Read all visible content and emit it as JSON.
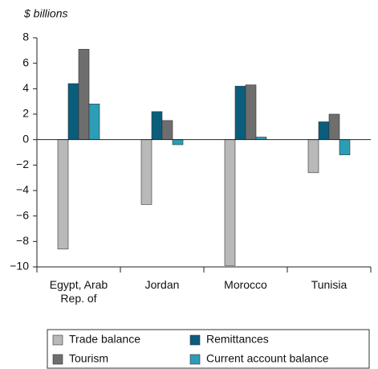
{
  "chart_data": {
    "type": "bar",
    "y_label": "$ billions",
    "categories": [
      "Egypt, Arab Rep. of",
      "Jordan",
      "Morocco",
      "Tunisia"
    ],
    "series": [
      {
        "name": "Trade balance",
        "color": "#b9b9b9",
        "values": [
          -8.6,
          -5.1,
          -9.9,
          -2.6
        ]
      },
      {
        "name": "Remittances",
        "color": "#0b5d7c",
        "values": [
          4.4,
          2.2,
          4.2,
          1.4
        ]
      },
      {
        "name": "Tourism",
        "color": "#6e6e6e",
        "values": [
          7.1,
          1.5,
          4.3,
          2.0
        ]
      },
      {
        "name": "Current account balance",
        "color": "#2c9db7",
        "values": [
          2.8,
          -0.4,
          0.2,
          -1.2
        ]
      }
    ],
    "ylim": [
      -10,
      8
    ],
    "yticks": [
      {
        "value": -10,
        "label": "−10"
      },
      {
        "value": -8,
        "label": "−8"
      },
      {
        "value": -6,
        "label": "−6"
      },
      {
        "value": -4,
        "label": "−4"
      },
      {
        "value": -2,
        "label": "−2"
      },
      0,
      2,
      4,
      6,
      8
    ]
  }
}
